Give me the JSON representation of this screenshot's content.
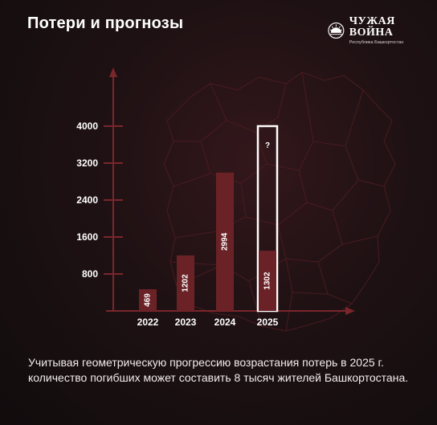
{
  "header": {
    "title": "Потери и прогнозы",
    "brand_name": "ЧУЖАЯ ВОЙНА",
    "brand_subtitle": "Республика Башкортостан"
  },
  "chart_data": {
    "type": "bar",
    "title": "",
    "categories": [
      "2022",
      "2023",
      "2024",
      "2025"
    ],
    "values": [
      469,
      1202,
      2994,
      1302
    ],
    "forecast": {
      "category": "2025",
      "value": 4000,
      "label": "?"
    },
    "yticks": [
      800,
      1600,
      2400,
      3200,
      4000
    ],
    "ylim": [
      0,
      4000
    ],
    "xlabel": "",
    "ylabel": "",
    "grid": false,
    "colors": {
      "bar": "#6b2227",
      "axis": "#7a262b",
      "forecast_outline": "#ffffff",
      "map_lines": "#4a1c20"
    }
  },
  "caption": "Учитывая геометрическую прогрессию возрастания потерь в 2025 г. количество погибших может составить 8 тысяч жителей Башкортостана."
}
